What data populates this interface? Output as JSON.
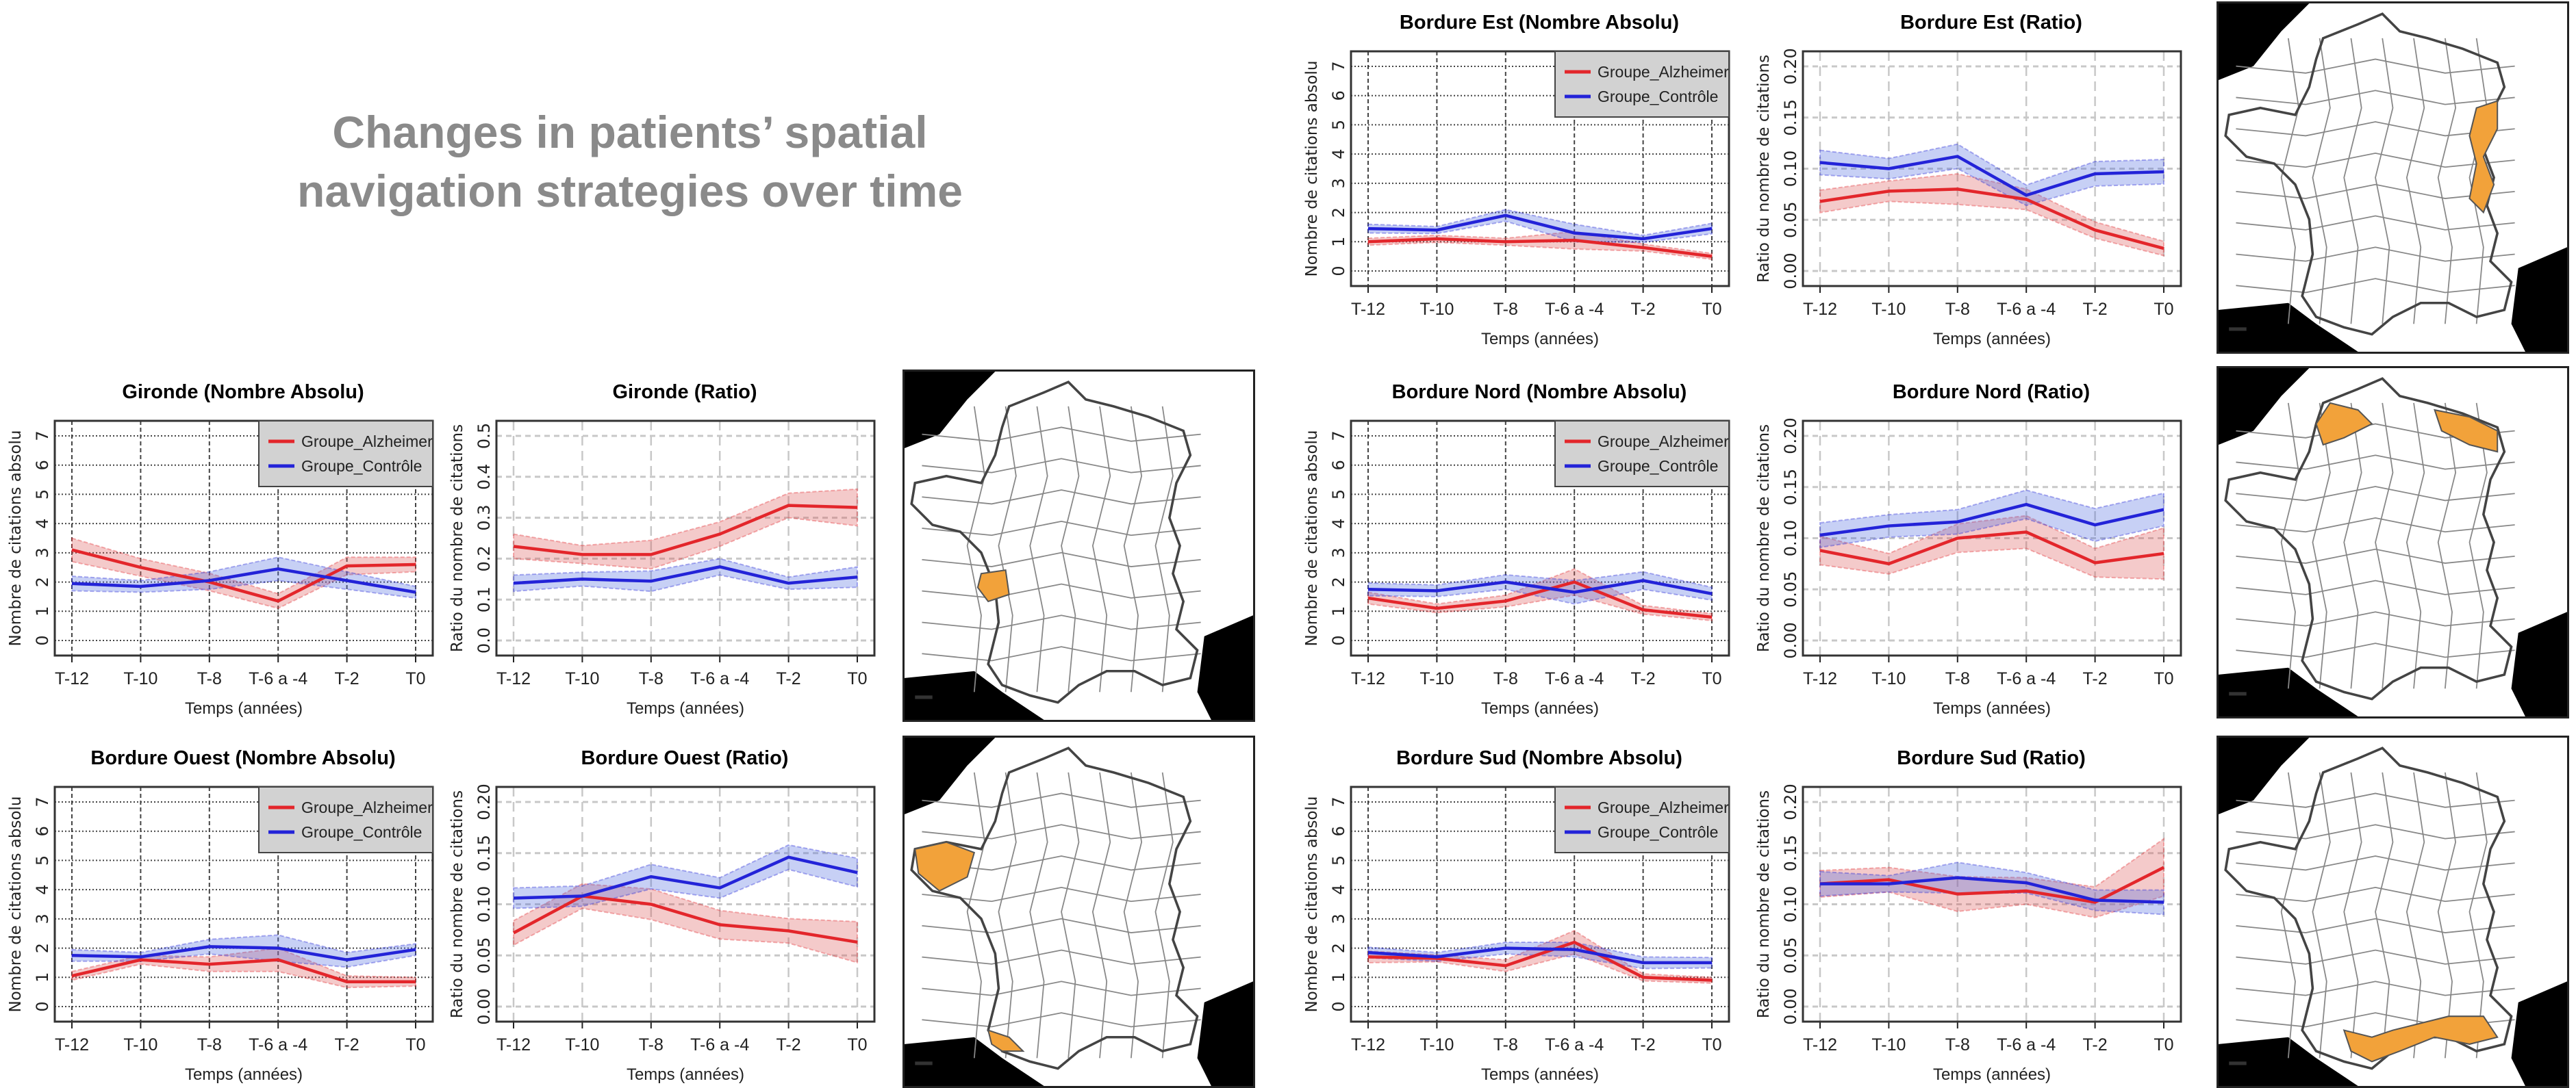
{
  "header": {
    "title": "Changes in patients’ spatial navigation strategies over time"
  },
  "colors": {
    "alzheimer": "#E3262B",
    "controle": "#2323D8",
    "highlight": "#F2A23A",
    "neighbor": "#000000"
  },
  "maps": [
    {
      "region": "gironde"
    },
    {
      "region": "ouest"
    },
    {
      "region": "est"
    },
    {
      "region": "nord"
    },
    {
      "region": "sud"
    }
  ],
  "chart_data": [
    {
      "type": "line",
      "title": "Gironde (Nombre Absolu)",
      "xlabel": "Temps (années)",
      "ylabel": "Nombre de citations absolu",
      "categories": [
        "T-12",
        "T-10",
        "T-8",
        "T-6 a -4",
        "T-2",
        "T0"
      ],
      "ylim": [
        0,
        7
      ],
      "yticks": [
        "0",
        "1",
        "2",
        "3",
        "4",
        "5",
        "6",
        "7"
      ],
      "grid": true,
      "legend": "top-right",
      "series": [
        {
          "name": "Groupe_Alzheimer",
          "values": [
            3.1,
            2.5,
            2.0,
            1.35,
            2.55,
            2.6
          ],
          "ci": [
            0.4,
            0.3,
            0.3,
            0.25,
            0.3,
            0.25
          ]
        },
        {
          "name": "Groupe_Contrôle",
          "values": [
            1.95,
            1.85,
            2.05,
            2.45,
            2.05,
            1.65
          ],
          "ci": [
            0.25,
            0.2,
            0.3,
            0.4,
            0.3,
            0.2
          ]
        }
      ]
    },
    {
      "type": "line",
      "title": "Gironde (Ratio)",
      "xlabel": "Temps (années)",
      "ylabel": "Ratio du nombre de citations",
      "categories": [
        "T-12",
        "T-10",
        "T-8",
        "T-6 a -4",
        "T-2",
        "T0"
      ],
      "ylim": [
        0,
        0.5
      ],
      "yticks": [
        "0.0",
        "0.1",
        "0.2",
        "0.3",
        "0.4",
        "0.5"
      ],
      "grid": true,
      "series": [
        {
          "name": "Groupe_Alzheimer",
          "values": [
            0.23,
            0.21,
            0.21,
            0.26,
            0.33,
            0.325
          ],
          "ci": [
            0.03,
            0.022,
            0.035,
            0.03,
            0.03,
            0.045
          ]
        },
        {
          "name": "Groupe_Contrôle",
          "values": [
            0.14,
            0.15,
            0.145,
            0.18,
            0.14,
            0.155
          ],
          "ci": [
            0.02,
            0.017,
            0.025,
            0.02,
            0.015,
            0.025
          ]
        }
      ]
    },
    {
      "type": "line",
      "title": "Bordure Ouest (Nombre Absolu)",
      "xlabel": "Temps (années)",
      "ylabel": "Nombre de citations absolu",
      "categories": [
        "T-12",
        "T-10",
        "T-8",
        "T-6 a -4",
        "T-2",
        "T0"
      ],
      "ylim": [
        0,
        7
      ],
      "yticks": [
        "0",
        "1",
        "2",
        "3",
        "4",
        "5",
        "6",
        "7"
      ],
      "grid": true,
      "legend": "top-right",
      "series": [
        {
          "name": "Groupe_Alzheimer",
          "values": [
            1.05,
            1.6,
            1.45,
            1.6,
            0.85,
            0.85
          ],
          "ci": [
            0.15,
            0.15,
            0.25,
            0.4,
            0.2,
            0.15
          ]
        },
        {
          "name": "Groupe_Contrôle",
          "values": [
            1.75,
            1.7,
            2.05,
            2.0,
            1.6,
            1.95
          ],
          "ci": [
            0.2,
            0.15,
            0.25,
            0.45,
            0.25,
            0.2
          ]
        }
      ]
    },
    {
      "type": "line",
      "title": "Bordure Ouest (Ratio)",
      "xlabel": "Temps (années)",
      "ylabel": "Ratio du nombre de citations",
      "categories": [
        "T-12",
        "T-10",
        "T-8",
        "T-6 a -4",
        "T-2",
        "T0"
      ],
      "ylim": [
        0,
        0.2
      ],
      "yticks": [
        "0.00",
        "0.05",
        "0.10",
        "0.15",
        "0.20"
      ],
      "grid": true,
      "series": [
        {
          "name": "Groupe_Alzheimer",
          "values": [
            0.072,
            0.108,
            0.1,
            0.08,
            0.074,
            0.063
          ],
          "ci": [
            0.012,
            0.012,
            0.015,
            0.014,
            0.012,
            0.02
          ]
        },
        {
          "name": "Groupe_Contrôle",
          "values": [
            0.106,
            0.108,
            0.127,
            0.116,
            0.146,
            0.131
          ],
          "ci": [
            0.01,
            0.01,
            0.012,
            0.01,
            0.012,
            0.014
          ]
        }
      ]
    },
    {
      "type": "line",
      "title": "Bordure Est (Nombre Absolu)",
      "xlabel": "Temps (années)",
      "ylabel": "Nombre de citations absolu",
      "categories": [
        "T-12",
        "T-10",
        "T-8",
        "T-6 a -4",
        "T-2",
        "T0"
      ],
      "ylim": [
        0,
        7
      ],
      "yticks": [
        "0",
        "1",
        "2",
        "3",
        "4",
        "5",
        "6",
        "7"
      ],
      "grid": true,
      "legend": "top-right",
      "series": [
        {
          "name": "Groupe_Alzheimer",
          "values": [
            1.0,
            1.1,
            1.0,
            1.05,
            0.8,
            0.5
          ],
          "ci": [
            0.12,
            0.12,
            0.12,
            0.3,
            0.12,
            0.1
          ]
        },
        {
          "name": "Groupe_Contrôle",
          "values": [
            1.45,
            1.4,
            1.9,
            1.3,
            1.1,
            1.45
          ],
          "ci": [
            0.15,
            0.12,
            0.2,
            0.3,
            0.12,
            0.18
          ]
        }
      ]
    },
    {
      "type": "line",
      "title": "Bordure Est (Ratio)",
      "xlabel": "Temps (années)",
      "ylabel": "Ratio du nombre de citations",
      "categories": [
        "T-12",
        "T-10",
        "T-8",
        "T-6 a -4",
        "T-2",
        "T0"
      ],
      "ylim": [
        0,
        0.2
      ],
      "yticks": [
        "0.00",
        "0.05",
        "0.10",
        "0.15",
        "0.20"
      ],
      "grid": true,
      "series": [
        {
          "name": "Groupe_Alzheimer",
          "values": [
            0.068,
            0.078,
            0.08,
            0.07,
            0.04,
            0.022
          ],
          "ci": [
            0.011,
            0.01,
            0.015,
            0.01,
            0.008,
            0.007
          ]
        },
        {
          "name": "Groupe_Contrôle",
          "values": [
            0.106,
            0.1,
            0.112,
            0.074,
            0.095,
            0.097
          ],
          "ci": [
            0.012,
            0.01,
            0.012,
            0.01,
            0.012,
            0.012
          ]
        }
      ]
    },
    {
      "type": "line",
      "title": "Bordure Nord (Nombre Absolu)",
      "xlabel": "Temps (années)",
      "ylabel": "Nombre de citations absolu",
      "categories": [
        "T-12",
        "T-10",
        "T-8",
        "T-6 a -4",
        "T-2",
        "T0"
      ],
      "ylim": [
        0,
        7
      ],
      "yticks": [
        "0",
        "1",
        "2",
        "3",
        "4",
        "5",
        "6",
        "7"
      ],
      "grid": true,
      "legend": "top-right",
      "series": [
        {
          "name": "Groupe_Alzheimer",
          "values": [
            1.45,
            1.1,
            1.35,
            2.0,
            1.05,
            0.8
          ],
          "ci": [
            0.2,
            0.15,
            0.2,
            0.45,
            0.15,
            0.12
          ]
        },
        {
          "name": "Groupe_Contrôle",
          "values": [
            1.75,
            1.7,
            2.0,
            1.65,
            2.05,
            1.6
          ],
          "ci": [
            0.22,
            0.2,
            0.25,
            0.4,
            0.3,
            0.22
          ]
        }
      ]
    },
    {
      "type": "line",
      "title": "Bordure Nord (Ratio)",
      "xlabel": "Temps (années)",
      "ylabel": "Ratio du nombre de citations",
      "categories": [
        "T-12",
        "T-10",
        "T-8",
        "T-6 a -4",
        "T-2",
        "T0"
      ],
      "ylim": [
        0,
        0.2
      ],
      "yticks": [
        "0.00",
        "0.05",
        "0.10",
        "0.15",
        "0.20"
      ],
      "grid": true,
      "series": [
        {
          "name": "Groupe_Alzheimer",
          "values": [
            0.088,
            0.075,
            0.1,
            0.106,
            0.076,
            0.085
          ],
          "ci": [
            0.014,
            0.01,
            0.014,
            0.016,
            0.014,
            0.025
          ]
        },
        {
          "name": "Groupe_Contrôle",
          "values": [
            0.103,
            0.112,
            0.116,
            0.133,
            0.113,
            0.128
          ],
          "ci": [
            0.012,
            0.011,
            0.012,
            0.014,
            0.016,
            0.016
          ]
        }
      ]
    },
    {
      "type": "line",
      "title": "Bordure Sud (Nombre Absolu)",
      "xlabel": "Temps (années)",
      "ylabel": "Nombre de citations absolu",
      "categories": [
        "T-12",
        "T-10",
        "T-8",
        "T-6 a -4",
        "T-2",
        "T0"
      ],
      "ylim": [
        0,
        7
      ],
      "yticks": [
        "0",
        "1",
        "2",
        "3",
        "4",
        "5",
        "6",
        "7"
      ],
      "grid": true,
      "legend": "top-right",
      "series": [
        {
          "name": "Groupe_Alzheimer",
          "values": [
            1.7,
            1.65,
            1.4,
            2.2,
            1.0,
            0.9
          ],
          "ci": [
            0.2,
            0.12,
            0.2,
            0.4,
            0.12,
            0.1
          ]
        },
        {
          "name": "Groupe_Contrôle",
          "values": [
            1.85,
            1.7,
            2.0,
            1.95,
            1.5,
            1.5
          ],
          "ci": [
            0.18,
            0.15,
            0.2,
            0.25,
            0.2,
            0.18
          ]
        }
      ]
    },
    {
      "type": "line",
      "title": "Bordure Sud (Ratio)",
      "xlabel": "Temps (années)",
      "ylabel": "Ratio du nombre de citations",
      "categories": [
        "T-12",
        "T-10",
        "T-8",
        "T-6 a -4",
        "T-2",
        "T0"
      ],
      "ylim": [
        0,
        0.2
      ],
      "yticks": [
        "0.00",
        "0.05",
        "0.10",
        "0.15",
        "0.20"
      ],
      "grid": true,
      "series": [
        {
          "name": "Groupe_Alzheimer",
          "values": [
            0.12,
            0.124,
            0.11,
            0.113,
            0.102,
            0.136
          ],
          "ci": [
            0.013,
            0.012,
            0.017,
            0.013,
            0.015,
            0.028
          ]
        },
        {
          "name": "Groupe_Contrôle",
          "values": [
            0.12,
            0.12,
            0.126,
            0.121,
            0.104,
            0.102
          ],
          "ci": [
            0.012,
            0.008,
            0.015,
            0.01,
            0.01,
            0.012
          ]
        }
      ]
    }
  ]
}
